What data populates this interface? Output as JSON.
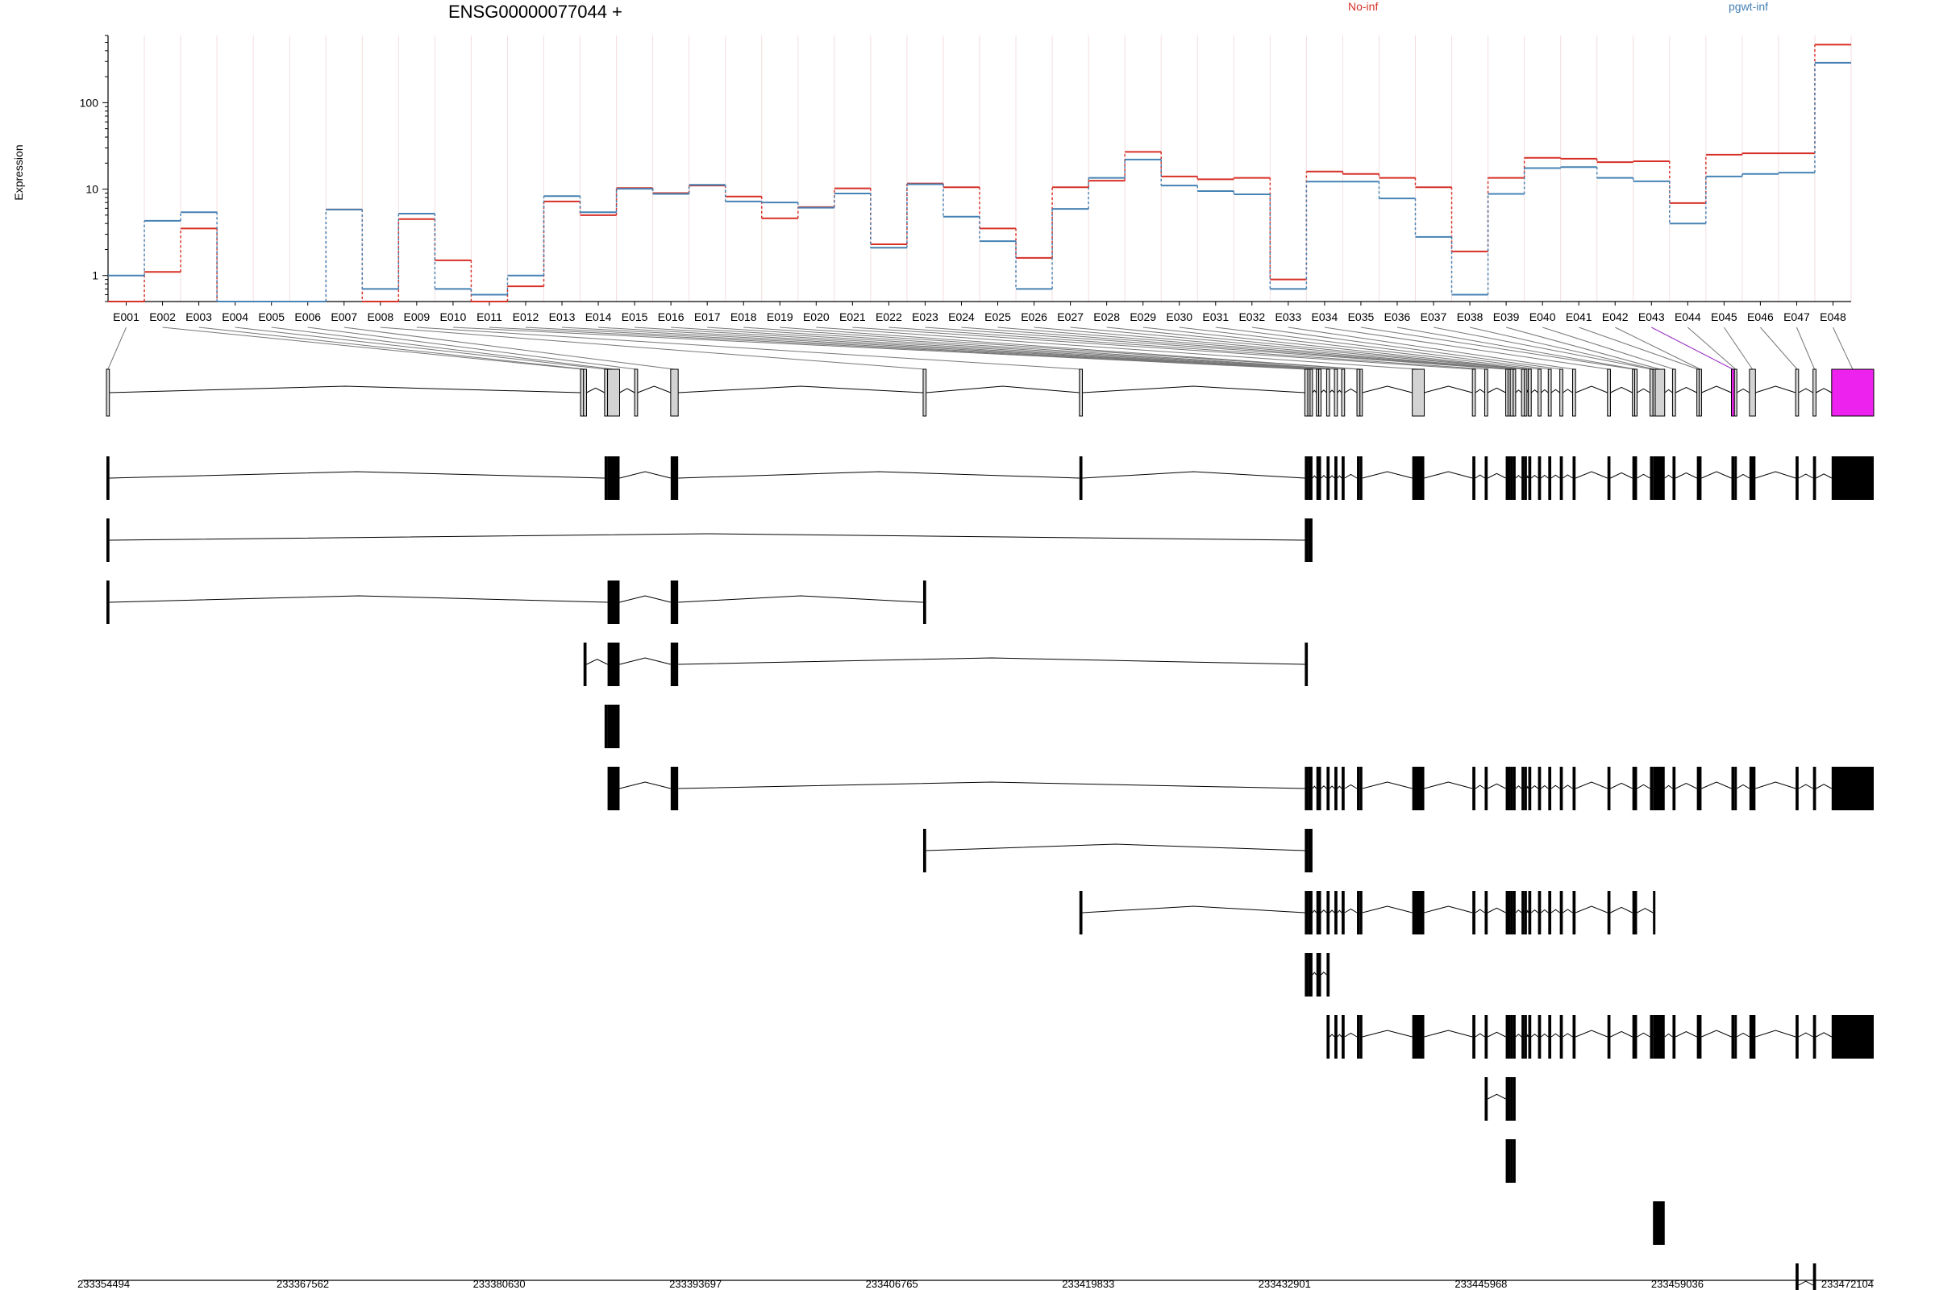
{
  "header": {
    "title": "ENSG00000077044 +",
    "ylabel": "Expression"
  },
  "legend": [
    {
      "name": "No-inf",
      "color": "#d73027"
    },
    {
      "name": "pgwt-inf",
      "color": "#4682b4"
    }
  ],
  "chart_data": {
    "type": "line",
    "yscale": "log",
    "ylim": [
      0.5,
      600
    ],
    "ytick_labels": [
      "1",
      "10",
      "100"
    ],
    "categories": [
      "E001",
      "E002",
      "E003",
      "E004",
      "E005",
      "E006",
      "E007",
      "E008",
      "E009",
      "E010",
      "E011",
      "E012",
      "E013",
      "E014",
      "E015",
      "E016",
      "E017",
      "E018",
      "E019",
      "E020",
      "E021",
      "E022",
      "E023",
      "E024",
      "E025",
      "E026",
      "E027",
      "E028",
      "E029",
      "E030",
      "E031",
      "E032",
      "E033",
      "E034",
      "E035",
      "E036",
      "E037",
      "E038",
      "E039",
      "E040",
      "E041",
      "E042",
      "E043",
      "E044",
      "E045",
      "E046",
      "E047",
      "E048"
    ],
    "series": [
      {
        "name": "No-inf",
        "values": [
          0.5,
          1.1,
          3.5,
          0.5,
          0.5,
          0.5,
          5.8,
          0.5,
          4.5,
          1.5,
          0.5,
          0.75,
          7.2,
          5.0,
          10.3,
          9.0,
          11.0,
          8.2,
          4.6,
          6.2,
          10.2,
          2.3,
          11.6,
          10.5,
          3.5,
          1.6,
          10.5,
          12.5,
          27.0,
          14.0,
          13.0,
          13.5,
          0.9,
          16.0,
          15.0,
          13.5,
          10.5,
          1.9,
          13.5,
          23.0,
          22.5,
          20.5,
          21.0,
          6.9,
          25.0,
          26.0,
          26.0,
          470.0
        ]
      },
      {
        "name": "pgwt-inf",
        "values": [
          1.0,
          4.3,
          5.4,
          0.5,
          0.5,
          0.5,
          5.8,
          0.7,
          5.2,
          0.7,
          0.6,
          1.0,
          8.3,
          5.4,
          10.1,
          8.8,
          11.2,
          7.2,
          7.0,
          6.1,
          8.9,
          2.1,
          11.4,
          4.8,
          2.5,
          0.7,
          5.9,
          13.5,
          22.0,
          11.0,
          9.5,
          8.7,
          0.7,
          12.2,
          12.2,
          7.8,
          2.8,
          0.6,
          8.8,
          17.5,
          18.0,
          13.5,
          12.3,
          4.0,
          14.0,
          15.0,
          15.5,
          290.0
        ]
      }
    ],
    "genomic_axis": {
      "range": [
        233354494,
        233472104
      ],
      "tick_labels": [
        "233354494",
        "233367562",
        "233380630",
        "233393697",
        "233406765",
        "233419833",
        "233432901",
        "233445968",
        "233459036",
        "233472104"
      ]
    },
    "exons": [
      {
        "id": "E001",
        "start": 233354494,
        "end": 233354694
      },
      {
        "id": "E002",
        "start": 233386044,
        "end": 233386244
      },
      {
        "id": "E003",
        "start": 233386244,
        "end": 233386444
      },
      {
        "id": "E004",
        "start": 233387644,
        "end": 233387844
      },
      {
        "id": "E005",
        "start": 233387844,
        "end": 233388644
      },
      {
        "id": "E006",
        "start": 233389644,
        "end": 233389844
      },
      {
        "id": "E007",
        "start": 233392044,
        "end": 233392544
      },
      {
        "id": "E008",
        "start": 233408844,
        "end": 233409044
      },
      {
        "id": "E009",
        "start": 233419244,
        "end": 233419444
      },
      {
        "id": "E010",
        "start": 233434244,
        "end": 233434444
      },
      {
        "id": "E011",
        "start": 233434444,
        "end": 233434594
      },
      {
        "id": "E012",
        "start": 233434594,
        "end": 233434744
      },
      {
        "id": "E013",
        "start": 233435014,
        "end": 233435164
      },
      {
        "id": "E014",
        "start": 233435164,
        "end": 233435314
      },
      {
        "id": "E015",
        "start": 233435694,
        "end": 233435894
      },
      {
        "id": "E016",
        "start": 233436214,
        "end": 233436414
      },
      {
        "id": "E017",
        "start": 233436694,
        "end": 233436894
      },
      {
        "id": "E018",
        "start": 233437714,
        "end": 233437914
      },
      {
        "id": "E019",
        "start": 233437914,
        "end": 233438064
      },
      {
        "id": "E020",
        "start": 233441394,
        "end": 233442194
      },
      {
        "id": "E021",
        "start": 233445394,
        "end": 233445594
      },
      {
        "id": "E022",
        "start": 233446214,
        "end": 233446414
      },
      {
        "id": "E023",
        "start": 233447614,
        "end": 233447764
      },
      {
        "id": "E024",
        "start": 233447764,
        "end": 233447914
      },
      {
        "id": "E025",
        "start": 233447914,
        "end": 233448114
      },
      {
        "id": "E026",
        "start": 233448114,
        "end": 233448264
      },
      {
        "id": "E027",
        "start": 233448664,
        "end": 233448864
      },
      {
        "id": "E028",
        "start": 233448864,
        "end": 233449014
      },
      {
        "id": "E029",
        "start": 233449114,
        "end": 233449314
      },
      {
        "id": "E030",
        "start": 233449764,
        "end": 233449964
      },
      {
        "id": "E031",
        "start": 233450444,
        "end": 233450644
      },
      {
        "id": "E032",
        "start": 233451214,
        "end": 233451414
      },
      {
        "id": "E033",
        "start": 233452064,
        "end": 233452264
      },
      {
        "id": "E034",
        "start": 233454384,
        "end": 233454584
      },
      {
        "id": "E035",
        "start": 233456044,
        "end": 233456194
      },
      {
        "id": "E036",
        "start": 233456194,
        "end": 233456344
      },
      {
        "id": "E037",
        "start": 233457214,
        "end": 233457414
      },
      {
        "id": "E038",
        "start": 233457414,
        "end": 233457564
      },
      {
        "id": "E039",
        "start": 233457564,
        "end": 233458194
      },
      {
        "id": "E040",
        "start": 233458714,
        "end": 233458914
      },
      {
        "id": "E041",
        "start": 233460334,
        "end": 233460484
      },
      {
        "id": "E042",
        "start": 233460484,
        "end": 233460634
      },
      {
        "id": "E043",
        "start": 233462634,
        "end": 233462834
      },
      {
        "id": "E044",
        "start": 233462834,
        "end": 233462994
      },
      {
        "id": "E045",
        "start": 233463834,
        "end": 233464234
      },
      {
        "id": "E046",
        "start": 233466904,
        "end": 233467104
      },
      {
        "id": "E047",
        "start": 233468064,
        "end": 233468264
      },
      {
        "id": "E048",
        "start": 233469304,
        "end": 233472104
      }
    ],
    "highlight_exon": "E043",
    "transcripts": [
      [
        1,
        4,
        5,
        7,
        9,
        10,
        11,
        12,
        13,
        14,
        15,
        16,
        17,
        18,
        19,
        20,
        21,
        22,
        23,
        24,
        25,
        26,
        27,
        28,
        29,
        30,
        31,
        32,
        33,
        34,
        35,
        36,
        37,
        38,
        39,
        40,
        41,
        42,
        43,
        44,
        45,
        46,
        47,
        48
      ],
      [
        1,
        10,
        11,
        12
      ],
      [
        1,
        5,
        7,
        8
      ],
      [
        3,
        5,
        7,
        10
      ],
      [
        4,
        5
      ],
      [
        5,
        7,
        10,
        11,
        12,
        13,
        14,
        15,
        16,
        17,
        18,
        19,
        20,
        21,
        22,
        23,
        24,
        25,
        26,
        27,
        28,
        29,
        30,
        31,
        32,
        33,
        34,
        35,
        36,
        37,
        38,
        39,
        40,
        41,
        42,
        43,
        44,
        45,
        46,
        47,
        48
      ],
      [
        8,
        10,
        11,
        12
      ],
      [
        9,
        10,
        11,
        12,
        13,
        14,
        15,
        16,
        17,
        18,
        19,
        20,
        21,
        22,
        23,
        24,
        25,
        26,
        27,
        28,
        29,
        30,
        31,
        32,
        33,
        34,
        35,
        36,
        38
      ],
      [
        10,
        11,
        12,
        13,
        14,
        15
      ],
      [
        15,
        16,
        17,
        18,
        19,
        20,
        21,
        22,
        23,
        24,
        25,
        26,
        27,
        28,
        29,
        30,
        31,
        32,
        33,
        34,
        35,
        36,
        37,
        38,
        39,
        40,
        41,
        42,
        43,
        44,
        45,
        46,
        47,
        48
      ],
      [
        22,
        23,
        24,
        25,
        26
      ],
      [
        23,
        24,
        25,
        26
      ],
      [
        38,
        39
      ],
      [
        46,
        47
      ]
    ]
  }
}
